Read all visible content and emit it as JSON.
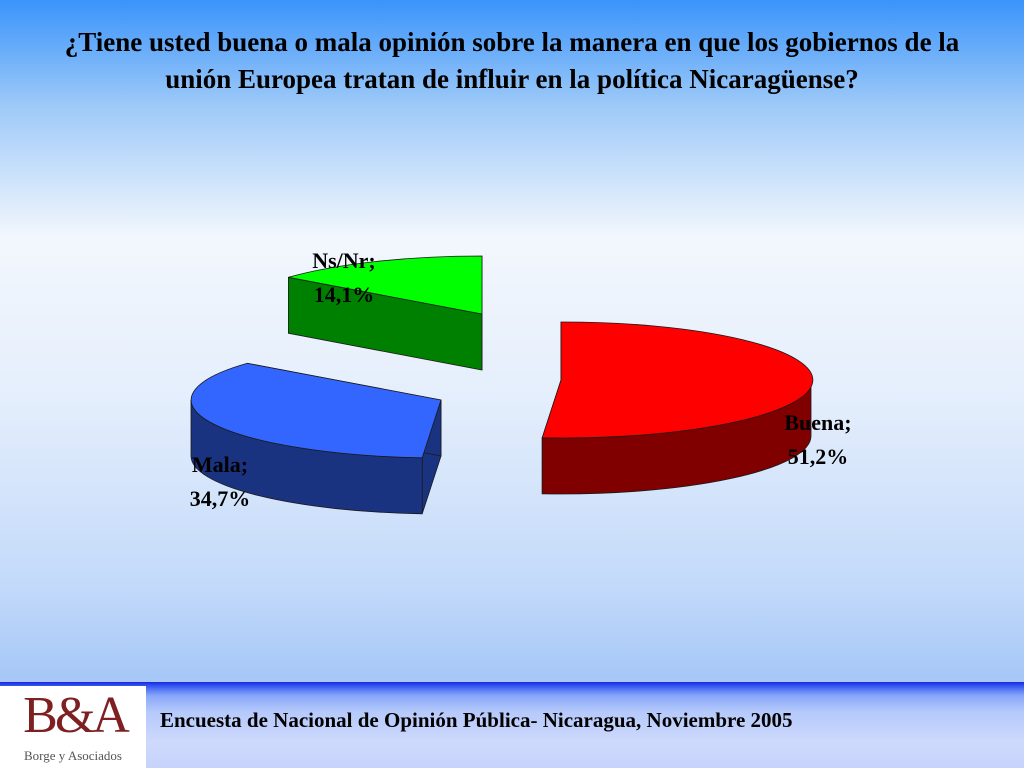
{
  "title": "¿Tiene usted buena o mala opinión sobre la manera en que los gobiernos de la unión Europea tratan de influir en la política Nicaragüense?",
  "chart_data": {
    "type": "pie",
    "style": "3d-exploded",
    "slices": [
      {
        "name": "Buena",
        "value": 51.2,
        "label_line1": "Buena;",
        "label_line2": "51,2%",
        "color": "#ff0000",
        "side_color": "#800000"
      },
      {
        "name": "Mala",
        "value": 34.7,
        "label_line1": "Mala;",
        "label_line2": "34,7%",
        "color": "#3366ff",
        "side_color": "#1a3380"
      },
      {
        "name": "Ns/Nr",
        "value": 14.1,
        "label_line1": "Ns/Nr;",
        "label_line2": "14,1%",
        "color": "#00ff00",
        "side_color": "#008000"
      }
    ]
  },
  "footer": {
    "logo_mark": "B&A",
    "logo_sub": "Borge y Asociados",
    "text": "Encuesta de Nacional de Opinión Pública- Nicaragua, Noviembre 2005"
  }
}
